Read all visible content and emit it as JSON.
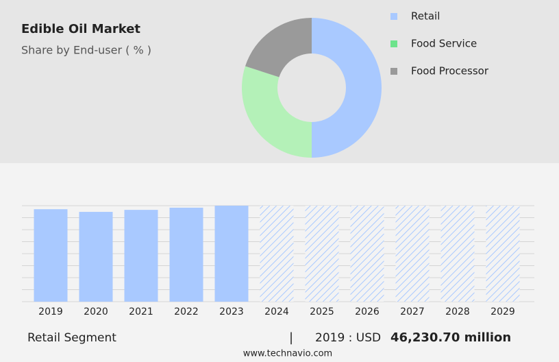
{
  "chart_data": [
    {
      "type": "donut",
      "title": "Edible Oil Market",
      "subtitle": "Share by End-user ( % )",
      "categories": [
        "Retail",
        "Food Service",
        "Food Processor"
      ],
      "values": [
        50,
        30,
        20
      ],
      "colors": [
        "#a9c9ff",
        "#b4f1b8",
        "#9a9a9a"
      ],
      "legend_colors": [
        "#a9c9ff",
        "#6de38c",
        "#9a9a9a"
      ]
    },
    {
      "type": "bar",
      "categories": [
        "2019",
        "2020",
        "2021",
        "2022",
        "2023",
        "2024",
        "2025",
        "2026",
        "2027",
        "2028",
        "2029"
      ],
      "values": [
        46230.7,
        44900,
        45900,
        47000,
        48000,
        48000,
        48000,
        48000,
        48000,
        48000,
        48000
      ],
      "hatched": [
        false,
        false,
        false,
        false,
        false,
        true,
        true,
        true,
        true,
        true,
        true
      ],
      "color": "#a9c9ff",
      "ylim": [
        0,
        48000
      ],
      "grid_divisions": 8
    }
  ],
  "footer": {
    "segment": "Retail Segment",
    "separator": "|",
    "year_label": "2019 : USD",
    "value": "46,230.70 million",
    "source": "www.technavio.com"
  }
}
